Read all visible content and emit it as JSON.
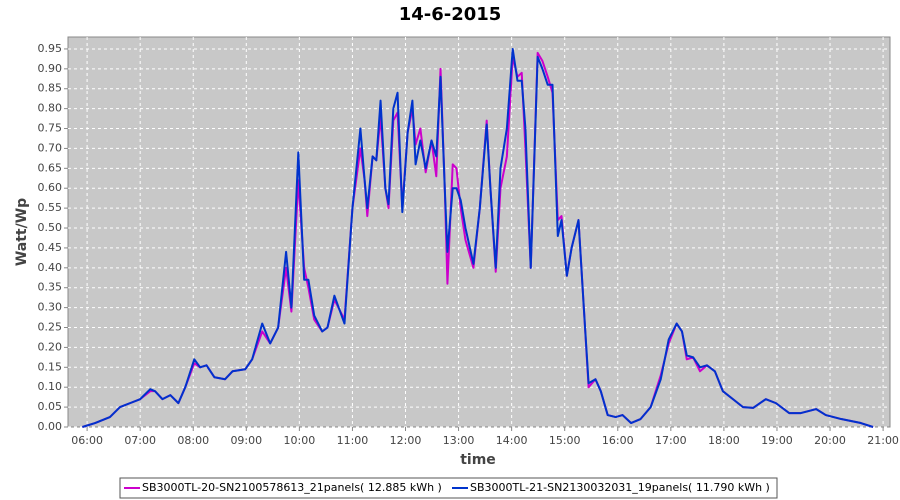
{
  "chart_data": {
    "type": "line",
    "title": "14-6-2015",
    "xlabel": "time",
    "ylabel": "Watt/Wp",
    "x": [
      5.91,
      6.15,
      6.43,
      6.62,
      6.81,
      7.0,
      7.19,
      7.28,
      7.42,
      7.57,
      7.72,
      7.85,
      8.02,
      8.13,
      8.25,
      8.4,
      8.6,
      8.74,
      8.98,
      9.11,
      9.3,
      9.45,
      9.6,
      9.75,
      9.85,
      9.98,
      10.09,
      10.17,
      10.28,
      10.43,
      10.53,
      10.66,
      10.85,
      11.0,
      11.15,
      11.23,
      11.28,
      11.38,
      11.45,
      11.53,
      11.62,
      11.68,
      11.77,
      11.85,
      11.94,
      12.04,
      12.13,
      12.19,
      12.28,
      12.38,
      12.49,
      12.58,
      12.66,
      12.74,
      12.79,
      12.89,
      12.96,
      13.04,
      13.13,
      13.28,
      13.4,
      13.53,
      13.6,
      13.7,
      13.79,
      13.91,
      14.02,
      14.11,
      14.19,
      14.26,
      14.36,
      14.49,
      14.58,
      14.68,
      14.77,
      14.87,
      14.94,
      15.04,
      15.13,
      15.26,
      15.36,
      15.45,
      15.58,
      15.68,
      15.81,
      15.96,
      16.09,
      16.25,
      16.43,
      16.62,
      16.81,
      16.96,
      17.11,
      17.21,
      17.3,
      17.42,
      17.55,
      17.68,
      17.83,
      17.98,
      18.17,
      18.36,
      18.55,
      18.79,
      18.98,
      19.23,
      19.45,
      19.74,
      19.92,
      20.21,
      20.58,
      20.81
    ],
    "series": [
      {
        "name": "SB3000TL-20-SN2100578613_21panels( 12.885 kWh )",
        "color": "#cc00cc",
        "values": [
          0,
          0.01,
          0.025,
          0.05,
          0.06,
          0.07,
          0.09,
          0.09,
          0.07,
          0.08,
          0.06,
          0.1,
          0.16,
          0.15,
          0.155,
          0.125,
          0.12,
          0.14,
          0.145,
          0.17,
          0.24,
          0.21,
          0.25,
          0.4,
          0.29,
          0.62,
          0.4,
          0.35,
          0.27,
          0.24,
          0.25,
          0.32,
          0.27,
          0.55,
          0.7,
          0.62,
          0.53,
          0.68,
          0.67,
          0.78,
          0.6,
          0.55,
          0.77,
          0.79,
          0.55,
          0.74,
          0.8,
          0.71,
          0.75,
          0.64,
          0.72,
          0.63,
          0.9,
          0.6,
          0.36,
          0.66,
          0.65,
          0.55,
          0.47,
          0.4,
          0.55,
          0.77,
          0.6,
          0.39,
          0.6,
          0.68,
          0.93,
          0.88,
          0.89,
          0.7,
          0.4,
          0.94,
          0.92,
          0.88,
          0.84,
          0.52,
          0.53,
          0.38,
          0.45,
          0.52,
          0.3,
          0.1,
          0.12,
          0.09,
          0.03,
          0.025,
          0.03,
          0.01,
          0.02,
          0.05,
          0.13,
          0.21,
          0.26,
          0.24,
          0.17,
          0.175,
          0.14,
          0.155,
          0.14,
          0.09,
          0.07,
          0.05,
          0.048,
          0.07,
          0.06,
          0.035,
          0.035,
          0.045,
          0.03,
          0.02,
          0.01,
          0
        ]
      },
      {
        "name": "SB3000TL-21-SN2130032031_19panels( 11.790 kWh )",
        "color": "#0033cc",
        "values": [
          0,
          0.01,
          0.025,
          0.05,
          0.06,
          0.07,
          0.095,
          0.09,
          0.07,
          0.08,
          0.06,
          0.1,
          0.17,
          0.15,
          0.155,
          0.125,
          0.12,
          0.14,
          0.145,
          0.17,
          0.26,
          0.21,
          0.25,
          0.44,
          0.3,
          0.69,
          0.37,
          0.37,
          0.28,
          0.24,
          0.25,
          0.33,
          0.26,
          0.55,
          0.75,
          0.62,
          0.55,
          0.68,
          0.67,
          0.82,
          0.6,
          0.56,
          0.8,
          0.84,
          0.54,
          0.74,
          0.82,
          0.66,
          0.72,
          0.65,
          0.72,
          0.68,
          0.88,
          0.6,
          0.44,
          0.6,
          0.6,
          0.57,
          0.5,
          0.41,
          0.55,
          0.76,
          0.6,
          0.4,
          0.65,
          0.75,
          0.95,
          0.87,
          0.87,
          0.75,
          0.4,
          0.93,
          0.9,
          0.86,
          0.86,
          0.48,
          0.52,
          0.38,
          0.45,
          0.52,
          0.3,
          0.11,
          0.12,
          0.09,
          0.03,
          0.025,
          0.03,
          0.01,
          0.02,
          0.05,
          0.12,
          0.22,
          0.26,
          0.24,
          0.18,
          0.175,
          0.15,
          0.155,
          0.14,
          0.09,
          0.07,
          0.05,
          0.048,
          0.07,
          0.06,
          0.035,
          0.035,
          0.045,
          0.03,
          0.02,
          0.01,
          0
        ]
      }
    ],
    "xlim": [
      5.64,
      21.13
    ],
    "xticks": [
      {
        "value": 6,
        "label": "06:00"
      },
      {
        "value": 7,
        "label": "07:00"
      },
      {
        "value": 8,
        "label": "08:00"
      },
      {
        "value": 9,
        "label": "09:00"
      },
      {
        "value": 10,
        "label": "10:00"
      },
      {
        "value": 11,
        "label": "11:00"
      },
      {
        "value": 12,
        "label": "12:00"
      },
      {
        "value": 13,
        "label": "13:00"
      },
      {
        "value": 14,
        "label": "14:00"
      },
      {
        "value": 15,
        "label": "15:00"
      },
      {
        "value": 16,
        "label": "16:00"
      },
      {
        "value": 17,
        "label": "17:00"
      },
      {
        "value": 18,
        "label": "18:00"
      },
      {
        "value": 19,
        "label": "19:00"
      },
      {
        "value": 20,
        "label": "20:00"
      },
      {
        "value": 21,
        "label": "21:00"
      }
    ],
    "ylim": [
      0,
      0.98
    ],
    "yticks": [
      {
        "value": 0,
        "label": "0.00"
      },
      0.05,
      {
        "value": 0.1,
        "label": "0.10"
      },
      0.15,
      {
        "value": 0.2,
        "label": "0.20"
      },
      0.25,
      {
        "value": 0.3,
        "label": "0.30"
      },
      0.35,
      {
        "value": 0.4,
        "label": "0.40"
      },
      0.45,
      {
        "value": 0.5,
        "label": "0.50"
      },
      0.55,
      {
        "value": 0.6,
        "label": "0.60"
      },
      0.65,
      {
        "value": 0.7,
        "label": "0.70"
      },
      0.75,
      {
        "value": 0.8,
        "label": "0.80"
      },
      0.85,
      {
        "value": 0.9,
        "label": "0.90"
      },
      0.95
    ],
    "grid": true,
    "legend": "bottom"
  }
}
